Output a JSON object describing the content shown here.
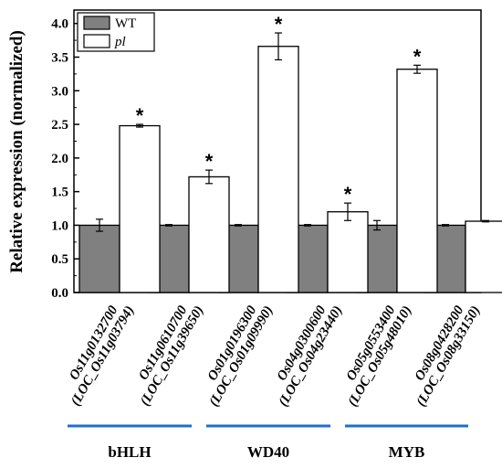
{
  "chart_data": {
    "type": "bar",
    "title": "",
    "xlabel": "",
    "ylabel": "Relative expression (normalized)",
    "ylim": [
      0,
      4.2
    ],
    "yticks": [
      "0.0",
      "0.5",
      "1.0",
      "1.5",
      "2.0",
      "2.5",
      "3.0",
      "3.5",
      "4.0"
    ],
    "categories": [
      [
        "Os11g0132700",
        "(LOC_Os11g03794)"
      ],
      [
        "Os11g0610700",
        "(LOC_Os11g39650)"
      ],
      [
        "Os01g0196300",
        "(LOC_Os01g09990)"
      ],
      [
        "Os04g0300600",
        "(LOC_Os04g23440)"
      ],
      [
        "Os05g0553400",
        "(LOC_Os05g48010)"
      ],
      [
        "Os08g0428200",
        "(LOC_Os08g33150)"
      ]
    ],
    "series": [
      {
        "name": "WT",
        "color": "#808080",
        "values": [
          1.0,
          1.0,
          1.0,
          1.0,
          1.0,
          1.0
        ],
        "errors": [
          0.09,
          0.01,
          0.01,
          0.01,
          0.07,
          0.01
        ]
      },
      {
        "name": "pl",
        "color": "#ffffff",
        "values": [
          2.48,
          1.72,
          3.66,
          1.2,
          3.32,
          1.06
        ],
        "errors": [
          0.02,
          0.1,
          0.2,
          0.13,
          0.06,
          0.01
        ]
      }
    ],
    "significance": [
      {
        "category": 0,
        "series": 1,
        "label": "*"
      },
      {
        "category": 1,
        "series": 1,
        "label": "*"
      },
      {
        "category": 2,
        "series": 1,
        "label": "*"
      },
      {
        "category": 3,
        "series": 1,
        "label": "*"
      },
      {
        "category": 4,
        "series": 1,
        "label": "*"
      }
    ],
    "groups": [
      {
        "label": "bHLH",
        "categories": [
          0,
          1
        ],
        "color": "#1f6fc9"
      },
      {
        "label": "WD40",
        "categories": [
          2,
          3
        ],
        "color": "#1f6fc9"
      },
      {
        "label": "MYB",
        "categories": [
          4,
          5
        ],
        "color": "#1f6fc9"
      }
    ],
    "legend": {
      "position": "top-left"
    },
    "grid": false
  }
}
